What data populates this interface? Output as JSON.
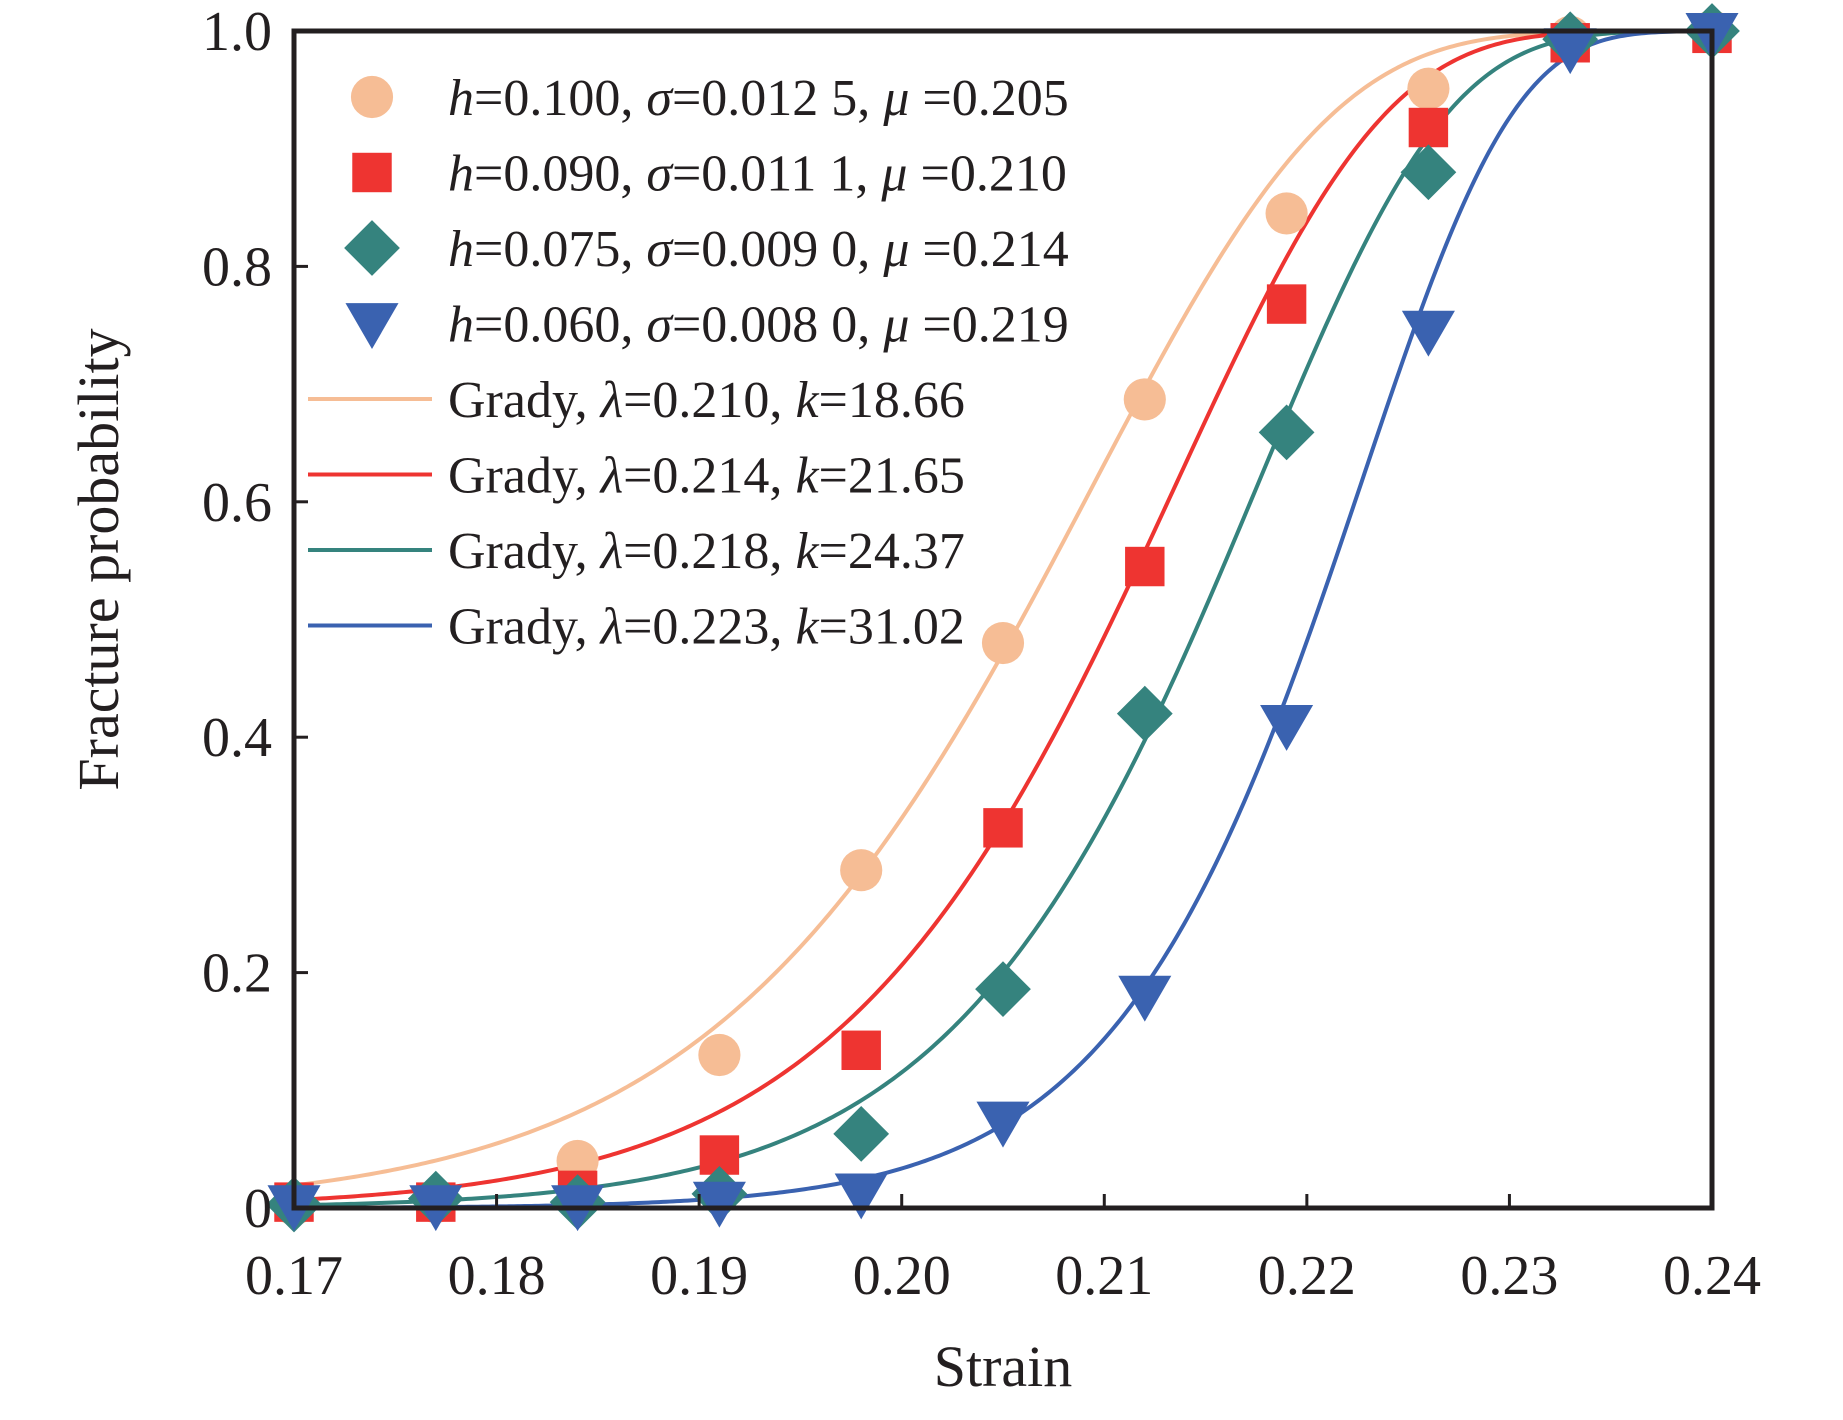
{
  "chart_data": {
    "type": "scatter",
    "title": "",
    "xlabel": "Strain",
    "ylabel": "Fracture probability",
    "xlim": [
      0.17,
      0.24
    ],
    "ylim": [
      0,
      1.0
    ],
    "grid": false,
    "legend_position": "top-left",
    "x_ticks": [
      0.17,
      0.18,
      0.19,
      0.2,
      0.21,
      0.22,
      0.23,
      0.24
    ],
    "x_tick_labels": [
      "0.17",
      "0.18",
      "0.19",
      "0.20",
      "0.21",
      "0.22",
      "0.23",
      "0.24"
    ],
    "y_ticks": [
      0,
      0.2,
      0.4,
      0.6,
      0.8,
      1.0
    ],
    "y_tick_labels": [
      "0",
      "0.2",
      "0.4",
      "0.6",
      "0.8",
      "1.0"
    ],
    "x": [
      0.17,
      0.177,
      0.184,
      0.191,
      0.198,
      0.205,
      0.212,
      0.219,
      0.226,
      0.233,
      0.24
    ],
    "series": [
      {
        "name": "h=0.100, σ=0.012 5, μ=0.205",
        "legend_parts": [
          [
            "h",
            true
          ],
          [
            "=0.100, ",
            false
          ],
          [
            "σ",
            true
          ],
          [
            "=0.012 5, ",
            false
          ],
          [
            "μ",
            true
          ],
          [
            " =0.205",
            false
          ]
        ],
        "marker": "circle",
        "color": "#f6bd95",
        "values": [
          0.003,
          0.005,
          0.04,
          0.13,
          0.287,
          0.48,
          0.687,
          0.845,
          0.951,
          0.995,
          1.0
        ]
      },
      {
        "name": "h=0.090, σ=0.011 1, μ=0.210",
        "legend_parts": [
          [
            "h",
            true
          ],
          [
            "=0.090, ",
            false
          ],
          [
            "σ",
            true
          ],
          [
            "=0.011 1, ",
            false
          ],
          [
            "μ",
            true
          ],
          [
            " =0.210",
            false
          ]
        ],
        "marker": "square",
        "color": "#ee3431",
        "values": [
          0.005,
          0.005,
          0.015,
          0.045,
          0.134,
          0.323,
          0.545,
          0.768,
          0.918,
          0.99,
          0.998
        ]
      },
      {
        "name": "h=0.075, σ=0.009 0, μ=0.214",
        "legend_parts": [
          [
            "h",
            true
          ],
          [
            "=0.075, ",
            false
          ],
          [
            "σ",
            true
          ],
          [
            "=0.009 0, ",
            false
          ],
          [
            "μ",
            true
          ],
          [
            " =0.214",
            false
          ]
        ],
        "marker": "diamond",
        "color": "#35837e",
        "values": [
          0.003,
          0.008,
          0.005,
          0.012,
          0.063,
          0.186,
          0.42,
          0.659,
          0.88,
          0.993,
          1.0
        ]
      },
      {
        "name": "h=0.060, σ=0.008 0, μ=0.219",
        "legend_parts": [
          [
            "h",
            true
          ],
          [
            "=0.060, ",
            false
          ],
          [
            "σ",
            true
          ],
          [
            "=0.008 0, ",
            false
          ],
          [
            "μ",
            true
          ],
          [
            " =0.219",
            false
          ]
        ],
        "marker": "triangle-down",
        "color": "#3a62b0",
        "values": [
          0.002,
          0.002,
          0.002,
          0.005,
          0.012,
          0.073,
          0.18,
          0.41,
          0.745,
          0.985,
          0.998
        ]
      }
    ],
    "fits": [
      {
        "name": "Grady, λ=0.210, k=18.66",
        "legend_parts": [
          [
            "Grady, ",
            false
          ],
          [
            "λ",
            true
          ],
          [
            "=0.210, ",
            false
          ],
          [
            "k",
            true
          ],
          [
            "=18.66",
            false
          ]
        ],
        "model": "1 - exp(-(x/lambda)^k)",
        "lambda": 0.21,
        "k": 18.66,
        "color": "#f6bd95"
      },
      {
        "name": "Grady, λ=0.214, k=21.65",
        "legend_parts": [
          [
            "Grady, ",
            false
          ],
          [
            "λ",
            true
          ],
          [
            "=0.214, ",
            false
          ],
          [
            "k",
            true
          ],
          [
            "=21.65",
            false
          ]
        ],
        "model": "1 - exp(-(x/lambda)^k)",
        "lambda": 0.214,
        "k": 21.65,
        "color": "#ee3431"
      },
      {
        "name": "Grady, λ=0.218, k=24.37",
        "legend_parts": [
          [
            "Grady, ",
            false
          ],
          [
            "λ",
            true
          ],
          [
            "=0.218, ",
            false
          ],
          [
            "k",
            true
          ],
          [
            "=24.37",
            false
          ]
        ],
        "model": "1 - exp(-(x/lambda)^k)",
        "lambda": 0.218,
        "k": 24.37,
        "color": "#35837e"
      },
      {
        "name": "Grady, λ=0.223, k=31.02",
        "legend_parts": [
          [
            "Grady, ",
            false
          ],
          [
            "λ",
            true
          ],
          [
            "=0.223, ",
            false
          ],
          [
            "k",
            true
          ],
          [
            "=31.02",
            false
          ]
        ],
        "model": "1 - exp(-(x/lambda)^k)",
        "lambda": 0.223,
        "k": 31.02,
        "color": "#3a62b0"
      }
    ]
  }
}
